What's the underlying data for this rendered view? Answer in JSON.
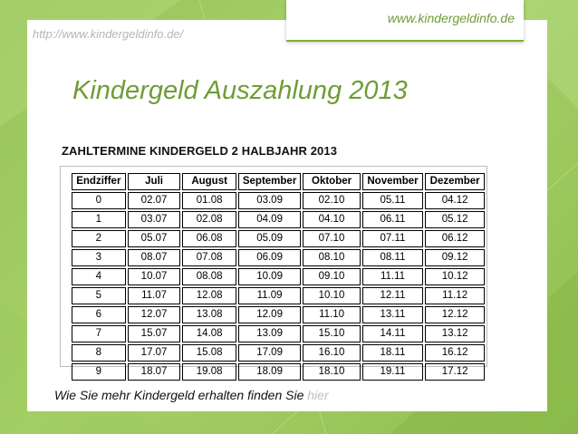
{
  "slide": {
    "url_left": "http://www.kindergeldinfo.de/",
    "url_right": "www.kindergeldinfo.de",
    "title": "Kindergeld Auszahlung 2013",
    "colors": {
      "accent": "#6f9c36",
      "background": "#a8d069"
    }
  },
  "table": {
    "heading": "ZAHLTERMINE KINDERGELD 2 HALBJAHR 2013",
    "columns": [
      "Endziffer",
      "Juli",
      "August",
      "September",
      "Oktober",
      "November",
      "Dezember"
    ],
    "rows": [
      [
        "0",
        "02.07",
        "01.08",
        "03.09",
        "02.10",
        "05.11",
        "04.12"
      ],
      [
        "1",
        "03.07",
        "02.08",
        "04.09",
        "04.10",
        "06.11",
        "05.12"
      ],
      [
        "2",
        "05.07",
        "06.08",
        "05.09",
        "07.10",
        "07.11",
        "06.12"
      ],
      [
        "3",
        "08.07",
        "07.08",
        "06.09",
        "08.10",
        "08.11",
        "09.12"
      ],
      [
        "4",
        "10.07",
        "08.08",
        "10.09",
        "09.10",
        "11.11",
        "10.12"
      ],
      [
        "5",
        "11.07",
        "12.08",
        "11.09",
        "10.10",
        "12.11",
        "11.12"
      ],
      [
        "6",
        "12.07",
        "13.08",
        "12.09",
        "11.10",
        "13.11",
        "12.12"
      ],
      [
        "7",
        "15.07",
        "14.08",
        "13.09",
        "15.10",
        "14.11",
        "13.12"
      ],
      [
        "8",
        "17.07",
        "15.08",
        "17.09",
        "16.10",
        "18.11",
        "16.12"
      ],
      [
        "9",
        "18.07",
        "19.08",
        "18.09",
        "18.10",
        "19.11",
        "17.12"
      ]
    ]
  },
  "footer": {
    "text": "Wie Sie mehr Kindergeld erhalten finden Sie ",
    "link": "hier"
  }
}
